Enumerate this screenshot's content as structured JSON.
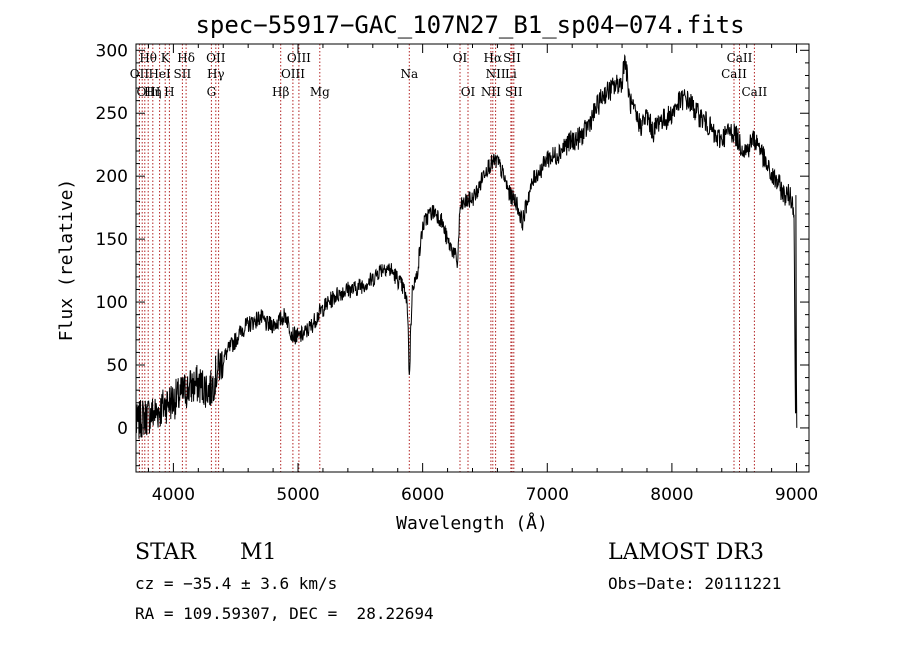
{
  "chart_data": {
    "type": "line",
    "title": "spec−55917−GAC_107N27_B1_sp04−074.fits",
    "xlabel": "Wavelength (Å)",
    "ylabel": "Flux (relative)",
    "xlim": [
      3700,
      9100
    ],
    "ylim": [
      -35,
      305
    ],
    "x_ticks": [
      4000,
      5000,
      6000,
      7000,
      8000,
      9000
    ],
    "y_ticks": [
      0,
      50,
      100,
      150,
      200,
      250,
      300
    ],
    "grid": false,
    "series": [
      {
        "name": "flux",
        "x": [
          3700,
          3750,
          3800,
          3850,
          3900,
          3950,
          4000,
          4050,
          4100,
          4150,
          4200,
          4250,
          4300,
          4350,
          4400,
          4450,
          4500,
          4550,
          4600,
          4650,
          4700,
          4750,
          4800,
          4850,
          4900,
          4950,
          5000,
          5050,
          5100,
          5150,
          5200,
          5250,
          5300,
          5350,
          5400,
          5450,
          5500,
          5550,
          5600,
          5650,
          5700,
          5750,
          5800,
          5850,
          5880,
          5893,
          5905,
          5920,
          5950,
          6000,
          6050,
          6100,
          6150,
          6200,
          6250,
          6280,
          6300,
          6350,
          6400,
          6450,
          6500,
          6550,
          6600,
          6650,
          6700,
          6750,
          6800,
          6850,
          6900,
          6950,
          7000,
          7050,
          7100,
          7150,
          7200,
          7250,
          7300,
          7350,
          7400,
          7450,
          7500,
          7550,
          7600,
          7620,
          7640,
          7660,
          7700,
          7750,
          7800,
          7850,
          7900,
          7950,
          8000,
          8050,
          8100,
          8150,
          8200,
          8250,
          8300,
          8350,
          8400,
          8450,
          8500,
          8550,
          8600,
          8650,
          8700,
          8750,
          8800,
          8850,
          8900,
          8950,
          8980,
          8990,
          9000
        ],
        "values": [
          2,
          8,
          10,
          12,
          15,
          20,
          22,
          25,
          30,
          33,
          35,
          32,
          30,
          45,
          55,
          63,
          70,
          78,
          82,
          85,
          88,
          82,
          82,
          85,
          90,
          75,
          72,
          75,
          80,
          88,
          95,
          100,
          105,
          108,
          110,
          110,
          113,
          115,
          118,
          125,
          128,
          125,
          118,
          110,
          95,
          38,
          80,
          115,
          118,
          160,
          170,
          172,
          165,
          148,
          140,
          130,
          175,
          180,
          182,
          190,
          205,
          210,
          212,
          200,
          185,
          180,
          163,
          185,
          200,
          205,
          215,
          215,
          220,
          225,
          228,
          230,
          235,
          245,
          255,
          265,
          268,
          272,
          275,
          295,
          280,
          260,
          250,
          240,
          248,
          235,
          245,
          245,
          250,
          258,
          262,
          258,
          250,
          245,
          240,
          230,
          230,
          235,
          235,
          225,
          220,
          230,
          225,
          210,
          200,
          195,
          185,
          185,
          175,
          20,
          0
        ]
      }
    ],
    "line_labels": [
      {
        "text": "Hθ",
        "x": 3798,
        "row": 1
      },
      {
        "text": "K",
        "x": 3934,
        "row": 1
      },
      {
        "text": "Hδ",
        "x": 4102,
        "row": 1
      },
      {
        "text": "OII",
        "x": 4340,
        "row": 1
      },
      {
        "text": "OIII",
        "x": 5007,
        "row": 1
      },
      {
        "text": "OI",
        "x": 6300,
        "row": 1
      },
      {
        "text": "Hα",
        "x": 6563,
        "row": 1
      },
      {
        "text": "SII",
        "x": 6717,
        "row": 1
      },
      {
        "text": "CaII",
        "x": 8542,
        "row": 1
      },
      {
        "text": "OII",
        "x": 3727,
        "row": 2
      },
      {
        "text": "HeI",
        "x": 3889,
        "row": 2
      },
      {
        "text": "SII",
        "x": 4072,
        "row": 2
      },
      {
        "text": "Hγ",
        "x": 4340,
        "row": 2
      },
      {
        "text": "OIII",
        "x": 4960,
        "row": 2
      },
      {
        "text": "Na",
        "x": 5893,
        "row": 2
      },
      {
        "text": "NII",
        "x": 6585,
        "row": 2
      },
      {
        "text": "Li",
        "x": 6708,
        "row": 2
      },
      {
        "text": "CaII",
        "x": 8498,
        "row": 2
      },
      {
        "text": "OIII",
        "x": 3800,
        "row": 3
      },
      {
        "text": "Hη",
        "x": 3835,
        "row": 3
      },
      {
        "text": "H",
        "x": 3968,
        "row": 3
      },
      {
        "text": "G",
        "x": 4305,
        "row": 3
      },
      {
        "text": "Hβ",
        "x": 4861,
        "row": 3
      },
      {
        "text": "Mg",
        "x": 5175,
        "row": 3
      },
      {
        "text": "OI",
        "x": 6364,
        "row": 3
      },
      {
        "text": "NII",
        "x": 6548,
        "row": 3
      },
      {
        "text": "SII",
        "x": 6731,
        "row": 3
      },
      {
        "text": "CaII",
        "x": 8662,
        "row": 3
      }
    ],
    "line_positions": [
      3727,
      3750,
      3771,
      3798,
      3835,
      3889,
      3934,
      3968,
      4072,
      4102,
      4305,
      4340,
      4363,
      4861,
      4959,
      5007,
      5175,
      5893,
      6300,
      6364,
      6548,
      6563,
      6585,
      6708,
      6717,
      6731,
      8498,
      8542,
      8662
    ],
    "colors": {
      "spectrum": "#000000",
      "lines": "#b22222",
      "axis": "#000000"
    }
  },
  "info": {
    "class": "STAR",
    "subclass": "M1",
    "survey": "LAMOST DR3",
    "cz": "cz = −35.4 ± 3.6 km/s",
    "obs_date": "Obs−Date: 20111221",
    "radec": "RA = 109.59307, DEC =  28.22694"
  }
}
